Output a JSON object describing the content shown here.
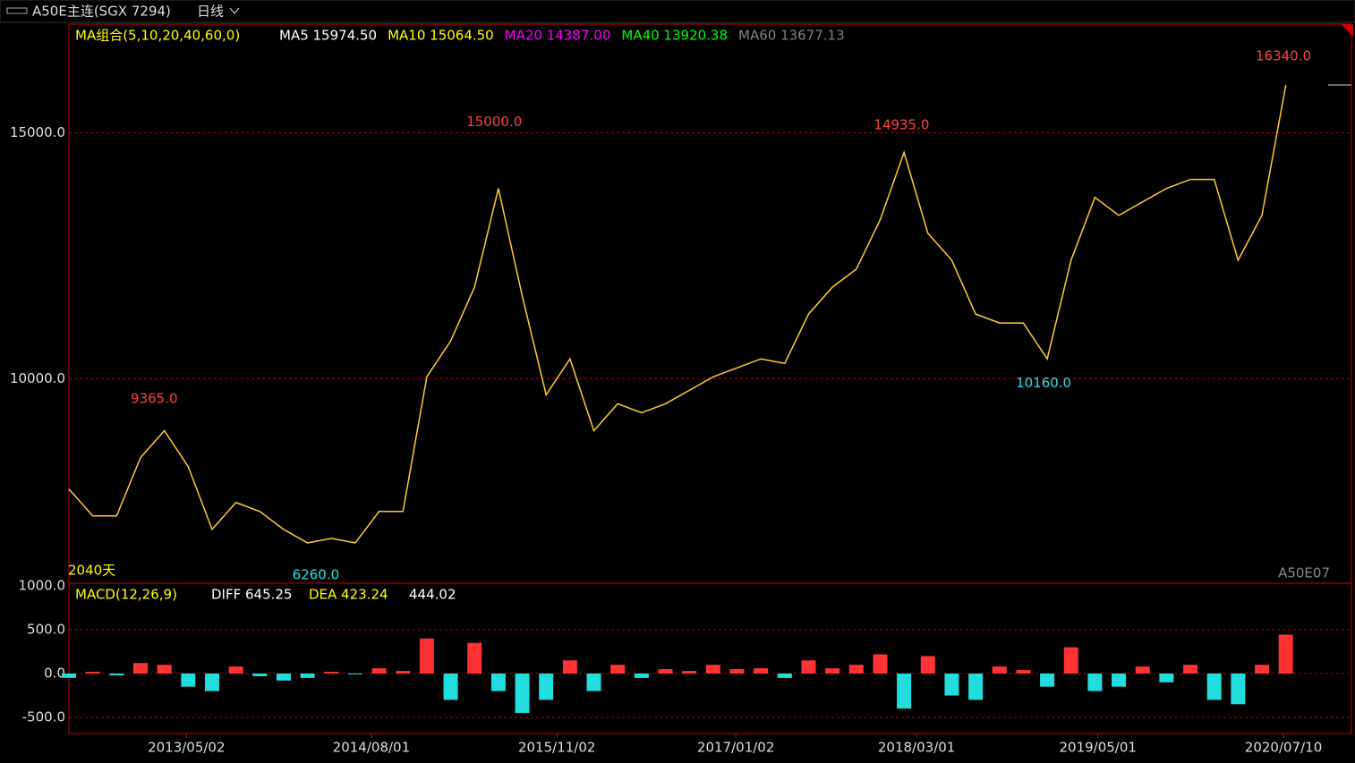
{
  "header": {
    "symbol": "A50E主连(SGX 7294)",
    "period": "日线"
  },
  "chart_data": {
    "type": "line",
    "ma_group": "MA组合(5,10,20,40,60,0)",
    "ma_legend": [
      {
        "text": "MA5 15974.50",
        "color": "#ffffff"
      },
      {
        "text": "MA10 15064.50",
        "color": "#ffff00"
      },
      {
        "text": "MA20 14387.00",
        "color": "#ff00ff"
      },
      {
        "text": "MA40 13920.38",
        "color": "#00ff00"
      },
      {
        "text": "MA60 13677.13",
        "color": "#808080"
      }
    ],
    "days_label": "2040天",
    "contract_label": "A50E07",
    "xlim": [
      0,
      2150
    ],
    "ylim": [
      5840,
      17210
    ],
    "yticks": [
      {
        "value": 15000,
        "label": "15000.0"
      },
      {
        "value": 10000,
        "label": "10000.0"
      }
    ],
    "xticks": [
      {
        "value": 197,
        "label": "2013/05/02"
      },
      {
        "value": 507,
        "label": "2014/08/01"
      },
      {
        "value": 818,
        "label": "2015/11/02"
      },
      {
        "value": 1118,
        "label": "2017/01/02"
      },
      {
        "value": 1421,
        "label": "2018/03/01"
      },
      {
        "value": 1725,
        "label": "2019/05/01"
      },
      {
        "value": 2036,
        "label": "2020/07/10"
      }
    ],
    "grid": true,
    "x": [
      0,
      40,
      80,
      120,
      160,
      200,
      240,
      280,
      320,
      360,
      400,
      440,
      480,
      520,
      560,
      600,
      640,
      680,
      720,
      760,
      800,
      840,
      880,
      920,
      960,
      1000,
      1040,
      1080,
      1120,
      1160,
      1200,
      1240,
      1280,
      1320,
      1360,
      1400,
      1440,
      1480,
      1520,
      1560,
      1600,
      1640,
      1680,
      1720,
      1760,
      1800,
      1840,
      1880,
      1920,
      1960,
      2000,
      2040
    ],
    "series": [
      {
        "color": "#ffcc33",
        "values": [
          7755,
          7208,
          7208,
          8394,
          8942,
          8211,
          6934,
          7482,
          7299,
          6934,
          6660,
          6752,
          6660,
          7299,
          7299,
          10037,
          10767,
          11862,
          13869,
          11679,
          9672,
          10402,
          8942,
          9489,
          9307,
          9489,
          9763,
          10037,
          10219,
          10402,
          10310,
          11314,
          11862,
          12227,
          13231,
          14599,
          12957,
          12409,
          11314,
          11132,
          11132,
          10402,
          12409,
          13687,
          13322,
          13595,
          13869,
          14052,
          14052,
          12409,
          13322,
          15968
        ]
      }
    ],
    "annotations": [
      {
        "text": "9365.0",
        "value": 9365,
        "x": 143,
        "color": "#ff4040"
      },
      {
        "text": "6260.0",
        "value": 6260,
        "x": 414,
        "color": "#33dddd"
      },
      {
        "text": "15000.0",
        "value": 15000,
        "x": 713,
        "color": "#ff4040"
      },
      {
        "text": "14935.0",
        "value": 14935,
        "x": 1396,
        "color": "#ff4040"
      },
      {
        "text": "10160.0",
        "value": 10160,
        "x": 1634,
        "color": "#33dddd"
      },
      {
        "text": "16340.0",
        "value": 16340,
        "x": 2036,
        "color": "#ff4040"
      }
    ],
    "macd": {
      "title": "MACD(12,26,9)",
      "diff": "DIFF 645.25",
      "dea": "DEA 423.24",
      "macd": "444.02",
      "ylim": [
        -684,
        1031
      ],
      "yticks": [
        {
          "value": 1000,
          "label": "1000.0"
        },
        {
          "value": 500,
          "label": "500.0"
        },
        {
          "value": 0,
          "label": "0.0"
        },
        {
          "value": -500,
          "label": "-500.0"
        }
      ],
      "up_color": "#ff3333",
      "down_color": "#22dddd",
      "values": [
        -50,
        20,
        -20,
        120,
        100,
        -150,
        -200,
        80,
        -30,
        -80,
        -50,
        20,
        -10,
        60,
        30,
        400,
        -300,
        350,
        -200,
        -450,
        -300,
        150,
        -200,
        100,
        -50,
        50,
        30,
        100,
        50,
        60,
        -50,
        150,
        60,
        100,
        220,
        -400,
        200,
        -250,
        -300,
        80,
        40,
        -150,
        300,
        -200,
        -150,
        80,
        -100,
        100,
        -300,
        -350,
        100,
        444.02
      ]
    }
  }
}
